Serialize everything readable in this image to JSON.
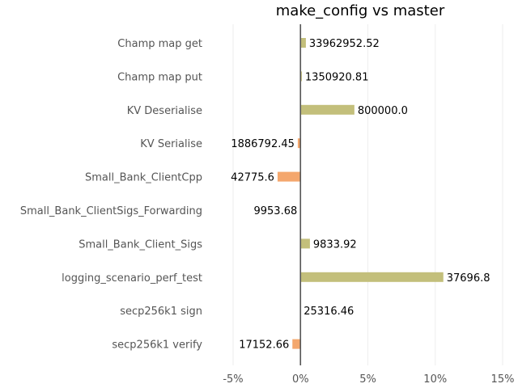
{
  "chart_data": {
    "type": "bar",
    "orientation": "horizontal",
    "title": "make_config vs master",
    "xlabel": "",
    "ylabel": "",
    "xlim": [
      -5,
      15
    ],
    "xticks": [
      -5,
      0,
      5,
      10,
      15
    ],
    "xtick_labels": [
      "-5%",
      "0%",
      "5%",
      "10%",
      "15%"
    ],
    "grid": "vertical",
    "legend": "none",
    "categories": [
      "Champ map get",
      "Champ map put",
      "KV Deserialise",
      "KV Serialise",
      "Small_Bank_ClientCpp",
      "Small_Bank_ClientSigs_Forwarding",
      "Small_Bank_Client_Sigs",
      "logging_scenario_perf_test",
      "secp256k1 sign",
      "secp256k1 verify"
    ],
    "values": [
      0.4,
      0.1,
      4.0,
      -0.2,
      -1.7,
      0.0,
      0.7,
      10.6,
      0.0,
      -0.6
    ],
    "data_labels": [
      "33962952.52",
      "1350920.81",
      "800000.0",
      "1886792.45",
      "42775.6",
      "9953.68",
      "9833.92",
      "37696.8",
      "25316.46",
      "17152.66"
    ],
    "colors": {
      "positive": "#c3bf7b",
      "negative": "#f4a76d",
      "zero_line": "#555555",
      "grid": "#eeeeee"
    }
  }
}
